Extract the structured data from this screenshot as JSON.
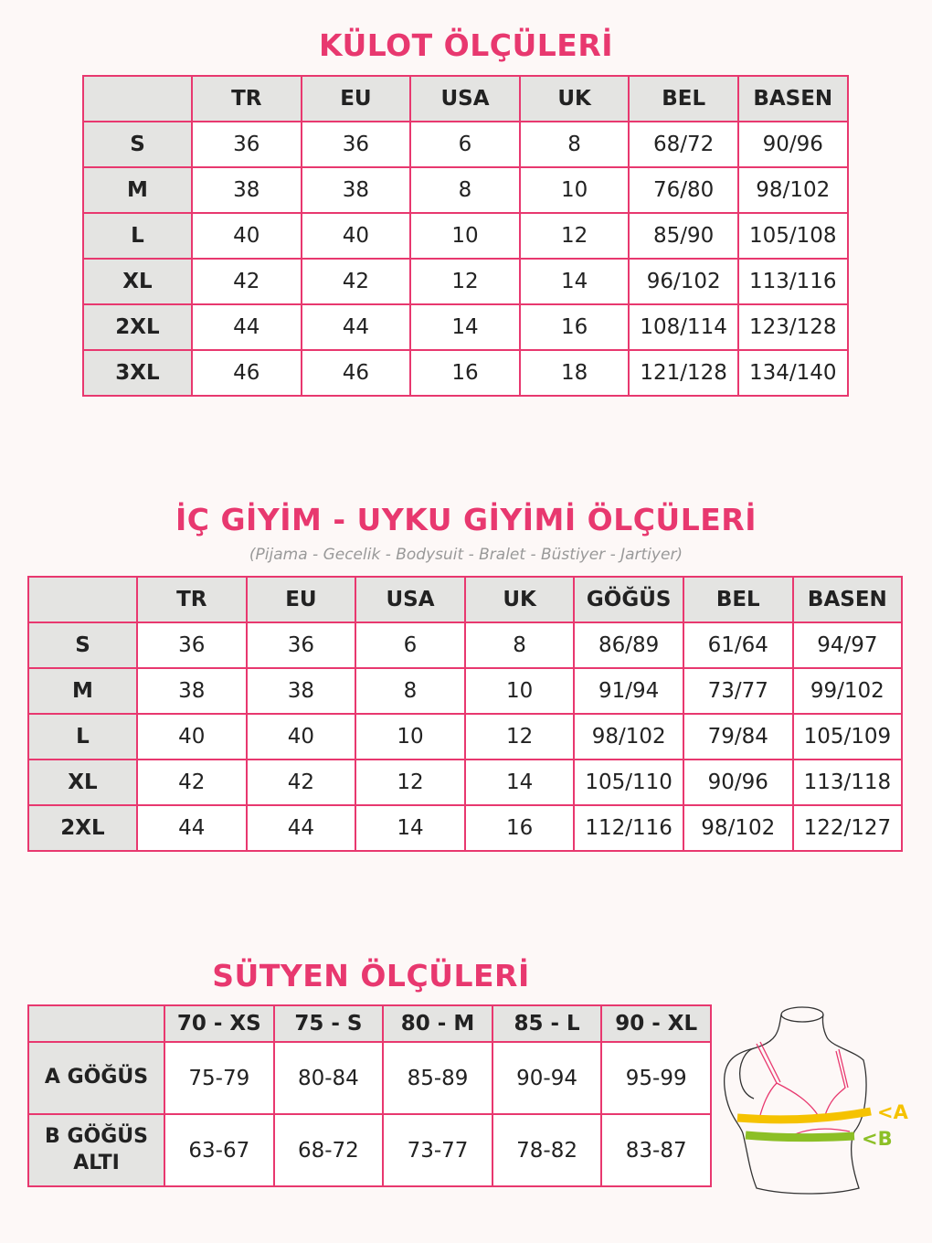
{
  "kulot": {
    "title": "KÜLOT ÖLÇÜLERİ",
    "headers": [
      "",
      "TR",
      "EU",
      "USA",
      "UK",
      "BEL",
      "BASEN"
    ],
    "rows": [
      [
        "S",
        "36",
        "36",
        "6",
        "8",
        "68/72",
        "90/96"
      ],
      [
        "M",
        "38",
        "38",
        "8",
        "10",
        "76/80",
        "98/102"
      ],
      [
        "L",
        "40",
        "40",
        "10",
        "12",
        "85/90",
        "105/108"
      ],
      [
        "XL",
        "42",
        "42",
        "12",
        "14",
        "96/102",
        "113/116"
      ],
      [
        "2XL",
        "44",
        "44",
        "14",
        "16",
        "108/114",
        "123/128"
      ],
      [
        "3XL",
        "46",
        "46",
        "16",
        "18",
        "121/128",
        "134/140"
      ]
    ]
  },
  "icgiyim": {
    "title": "İÇ GİYİM - UYKU GİYİMİ ÖLÇÜLERİ",
    "subtitle": "(Pijama - Gecelik - Bodysuit - Bralet - Büstiyer - Jartiyer)",
    "headers": [
      "",
      "TR",
      "EU",
      "USA",
      "UK",
      "GÖĞÜS",
      "BEL",
      "BASEN"
    ],
    "rows": [
      [
        "S",
        "36",
        "36",
        "6",
        "8",
        "86/89",
        "61/64",
        "94/97"
      ],
      [
        "M",
        "38",
        "38",
        "8",
        "10",
        "91/94",
        "73/77",
        "99/102"
      ],
      [
        "L",
        "40",
        "40",
        "10",
        "12",
        "98/102",
        "79/84",
        "105/109"
      ],
      [
        "XL",
        "42",
        "42",
        "12",
        "14",
        "105/110",
        "90/96",
        "113/118"
      ],
      [
        "2XL",
        "44",
        "44",
        "14",
        "16",
        "112/116",
        "98/102",
        "122/127"
      ]
    ]
  },
  "sutyen": {
    "title": "SÜTYEN ÖLÇÜLERİ",
    "headers": [
      "",
      "70 - XS",
      "75 - S",
      "80 - M",
      "85 - L",
      "90 - XL"
    ],
    "rows": [
      [
        "A GÖĞÜS",
        "75-79",
        "80-84",
        "85-89",
        "90-94",
        "95-99"
      ],
      [
        "B GÖĞÜS ALTI",
        "63-67",
        "68-72",
        "73-77",
        "78-82",
        "83-87"
      ]
    ]
  },
  "diagram": {
    "label_a": "<A",
    "label_b": "<B"
  },
  "colors": {
    "accent": "#e8386f",
    "header_bg": "#e4e4e2",
    "band_a": "#f5c200",
    "band_b": "#8cbf26"
  }
}
